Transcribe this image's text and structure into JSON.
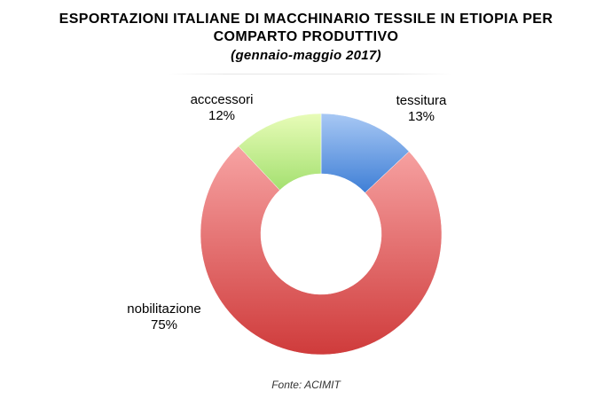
{
  "title_line1": "ESPORTAZIONI ITALIANE DI MACCHINARIO TESSILE IN ETIOPIA PER",
  "title_line2": "COMPARTO PRODUTTIVO",
  "subtitle": "(gennaio-maggio 2017)",
  "source": "Fonte: ACIMIT",
  "chart_data": {
    "type": "pie",
    "variant": "donut",
    "title": "ESPORTAZIONI ITALIANE DI MACCHINARIO TESSILE IN ETIOPIA PER COMPARTO PRODUTTIVO",
    "subtitle": "(gennaio-maggio 2017)",
    "slices": [
      {
        "label": "tessitura",
        "value": 13,
        "value_label": "13%",
        "color_light": "#a8c8f4",
        "color_dark": "#3f7fd6"
      },
      {
        "label": "nobilitazione",
        "value": 75,
        "value_label": "75%",
        "color_light": "#f7a3a3",
        "color_dark": "#cf3b3b"
      },
      {
        "label": "acccessori",
        "value": 12,
        "value_label": "12%",
        "color_light": "#e8fcb8",
        "color_dark": "#a4e070"
      }
    ],
    "legend": "none",
    "start": "top",
    "direction": "clockwise"
  }
}
